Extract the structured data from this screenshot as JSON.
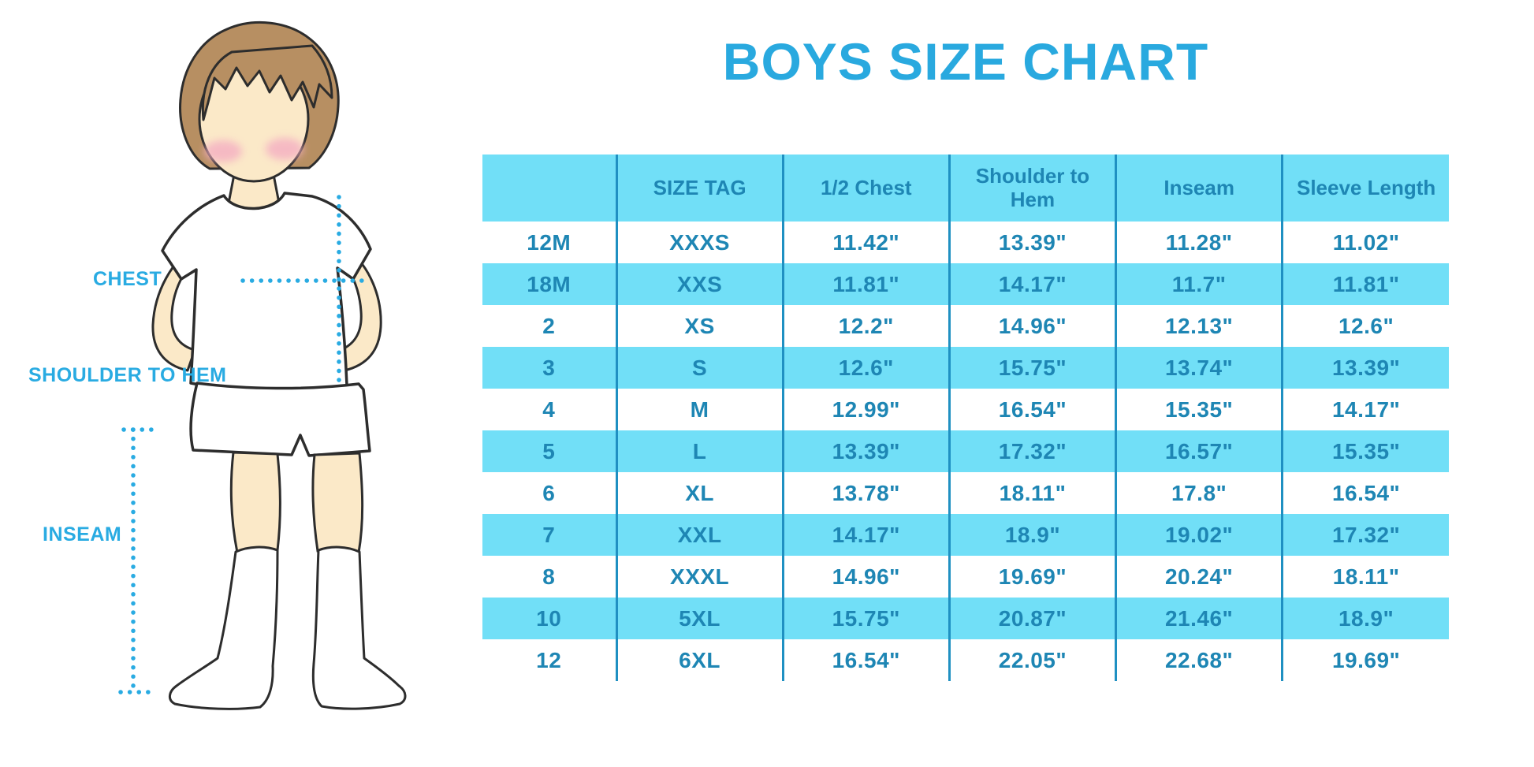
{
  "header": {
    "title": "BOYS SIZE CHART"
  },
  "figure": {
    "description": "cartoon boy in white t-shirt, shorts and knee socks with measurement guides",
    "labels": {
      "chest": "CHEST",
      "shoulder_to_hem": "SHOULDER TO HEM",
      "inseam": "INSEAM"
    }
  },
  "colors": {
    "title_blue": "#29a9df",
    "table_text_blue": "#1e86b4",
    "stripe_cyan": "#71dff7",
    "divider_blue": "#1f90c2",
    "label_blue": "#29abe2",
    "dotted_line_blue": "#29abe2",
    "skin": "#fbe9c8",
    "hair_brown": "#b78f62",
    "cheek_pink": "#f4aec2",
    "outline": "#2d2d2d",
    "background": "#ffffff"
  },
  "chart_data": {
    "type": "table",
    "title": "BOYS SIZE CHART",
    "columns": [
      "",
      "SIZE TAG",
      "1/2 Chest",
      "Shoulder to Hem",
      "Inseam",
      "Sleeve Length"
    ],
    "rows": [
      [
        "12M",
        "XXXS",
        "11.42\"",
        "13.39\"",
        "11.28\"",
        "11.02\""
      ],
      [
        "18M",
        "XXS",
        "11.81\"",
        "14.17\"",
        "11.7\"",
        "11.81\""
      ],
      [
        "2",
        "XS",
        "12.2\"",
        "14.96\"",
        "12.13\"",
        "12.6\""
      ],
      [
        "3",
        "S",
        "12.6\"",
        "15.75\"",
        "13.74\"",
        "13.39\""
      ],
      [
        "4",
        "M",
        "12.99\"",
        "16.54\"",
        "15.35\"",
        "14.17\""
      ],
      [
        "5",
        "L",
        "13.39\"",
        "17.32\"",
        "16.57\"",
        "15.35\""
      ],
      [
        "6",
        "XL",
        "13.78\"",
        "18.11\"",
        "17.8\"",
        "16.54\""
      ],
      [
        "7",
        "XXL",
        "14.17\"",
        "18.9\"",
        "19.02\"",
        "17.32\""
      ],
      [
        "8",
        "XXXL",
        "14.96\"",
        "19.69\"",
        "20.24\"",
        "18.11\""
      ],
      [
        "10",
        "5XL",
        "15.75\"",
        "20.87\"",
        "21.46\"",
        "18.9\""
      ],
      [
        "12",
        "6XL",
        "16.54\"",
        "22.05\"",
        "22.68\"",
        "19.69\""
      ]
    ],
    "layout": {
      "striped_rows": "even rows cyan",
      "grid": "vertical dividers only",
      "units": "inches"
    }
  }
}
